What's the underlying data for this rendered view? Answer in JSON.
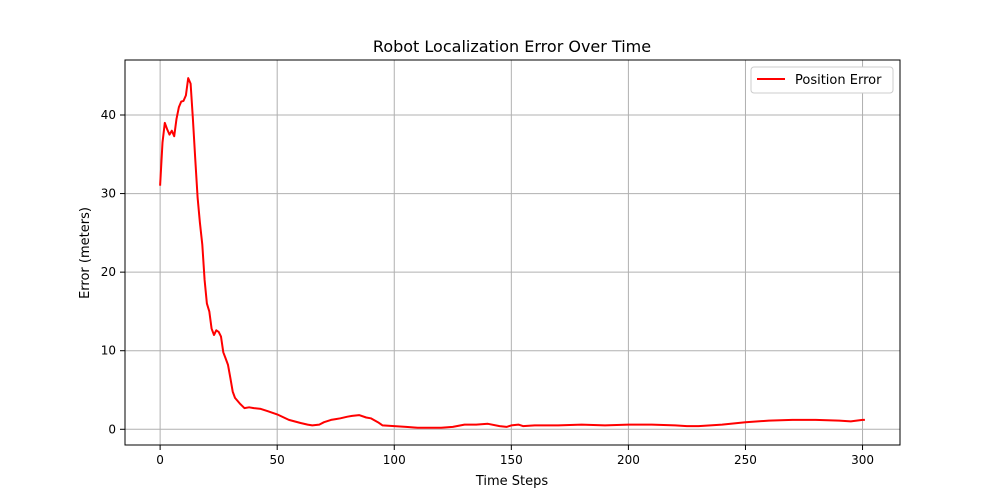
{
  "chart_data": {
    "type": "line",
    "title": "Robot Localization Error Over Time",
    "xlabel": "Time Steps",
    "ylabel": "Error (meters)",
    "xlim": [
      -15,
      316
    ],
    "ylim": [
      -2,
      47
    ],
    "xticks": [
      0,
      50,
      100,
      150,
      200,
      250,
      300
    ],
    "yticks": [
      0,
      10,
      20,
      30,
      40
    ],
    "grid": true,
    "legend": "top-right",
    "series": [
      {
        "name": "Position Error",
        "color": "#ff0000",
        "x": [
          0,
          1,
          2,
          3,
          4,
          5,
          6,
          7,
          8,
          9,
          10,
          11,
          12,
          13,
          14,
          15,
          16,
          17,
          18,
          19,
          20,
          21,
          22,
          23,
          24,
          25,
          26,
          27,
          28,
          29,
          30,
          31,
          32,
          34,
          36,
          38,
          40,
          43,
          46,
          50,
          55,
          60,
          63,
          65,
          68,
          70,
          73,
          75,
          77,
          80,
          82,
          85,
          88,
          90,
          93,
          95,
          100,
          105,
          110,
          115,
          120,
          125,
          130,
          135,
          140,
          145,
          148,
          150,
          153,
          155,
          160,
          170,
          180,
          190,
          200,
          210,
          220,
          225,
          230,
          240,
          250,
          260,
          270,
          275,
          280,
          290,
          295,
          300,
          301
        ],
        "values": [
          31.0,
          36.5,
          39.0,
          38.2,
          37.5,
          38.0,
          37.3,
          39.5,
          41.0,
          41.7,
          41.8,
          42.5,
          44.7,
          44.0,
          39.5,
          34.5,
          29.5,
          26.3,
          23.5,
          19.0,
          16.0,
          15.0,
          12.8,
          12.0,
          12.6,
          12.4,
          11.8,
          9.8,
          9.0,
          8.2,
          6.5,
          4.8,
          4.0,
          3.3,
          2.7,
          2.8,
          2.7,
          2.6,
          2.3,
          1.9,
          1.2,
          0.8,
          0.6,
          0.5,
          0.6,
          0.9,
          1.2,
          1.3,
          1.4,
          1.6,
          1.7,
          1.8,
          1.5,
          1.4,
          0.9,
          0.5,
          0.4,
          0.3,
          0.2,
          0.2,
          0.2,
          0.3,
          0.6,
          0.6,
          0.7,
          0.4,
          0.3,
          0.5,
          0.6,
          0.4,
          0.5,
          0.5,
          0.6,
          0.5,
          0.6,
          0.6,
          0.5,
          0.4,
          0.4,
          0.6,
          0.9,
          1.1,
          1.2,
          1.2,
          1.2,
          1.1,
          1.0,
          1.2,
          1.2
        ]
      }
    ]
  }
}
